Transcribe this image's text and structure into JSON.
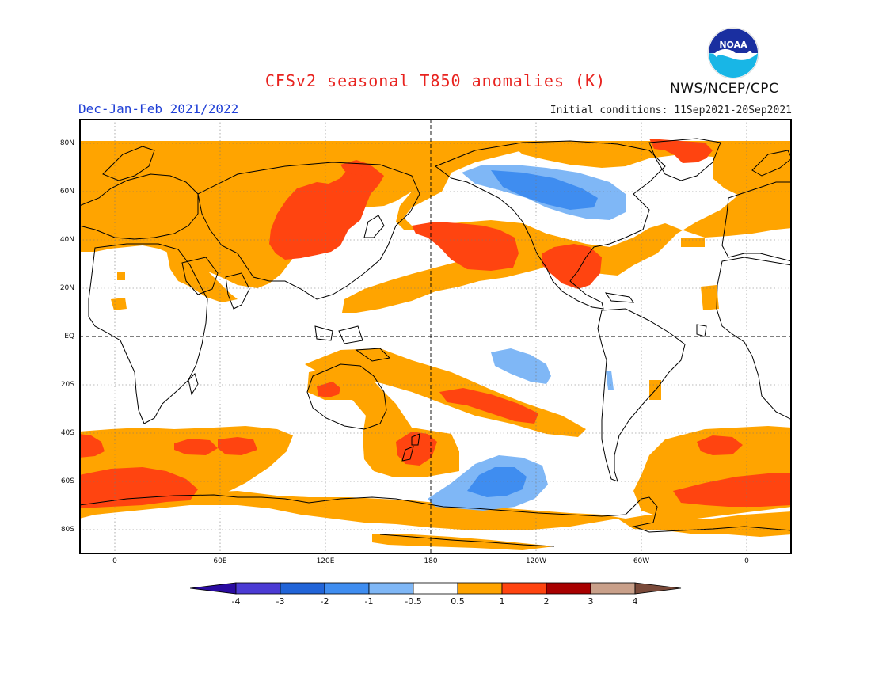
{
  "header": {
    "title": "CFSv2 seasonal T850 anomalies (K)",
    "period": "Dec-Jan-Feb 2021/2022",
    "initial_conditions": "Initial conditions: 11Sep2021-20Sep2021",
    "agency": "NWS/NCEP/CPC",
    "logo_text": "NOAA"
  },
  "map": {
    "latitude_labels": [
      "80N",
      "60N",
      "40N",
      "20N",
      "EQ",
      "20S",
      "40S",
      "60S",
      "80S"
    ],
    "longitude_labels": [
      "0",
      "60E",
      "120E",
      "180",
      "120W",
      "60W",
      "0"
    ]
  },
  "colorbar": {
    "labels": [
      "-4",
      "-3",
      "-2",
      "-1",
      "-0.5",
      "0.5",
      "1",
      "2",
      "3",
      "4"
    ],
    "colors": [
      "#2a0ba0",
      "#4b3bd4",
      "#2164d8",
      "#3f8df0",
      "#7fb7f6",
      "#ffffff",
      "#ffa400",
      "#ff4410",
      "#a80000",
      "#c9a08a",
      "#7a4a3a"
    ]
  },
  "colors": {
    "orange": "#ffa400",
    "red": "#ff4410",
    "light_blue": "#7fb7f6",
    "mid_blue": "#3f8df0",
    "title_red": "#e8231f",
    "period_blue": "#1f3fd6"
  }
}
